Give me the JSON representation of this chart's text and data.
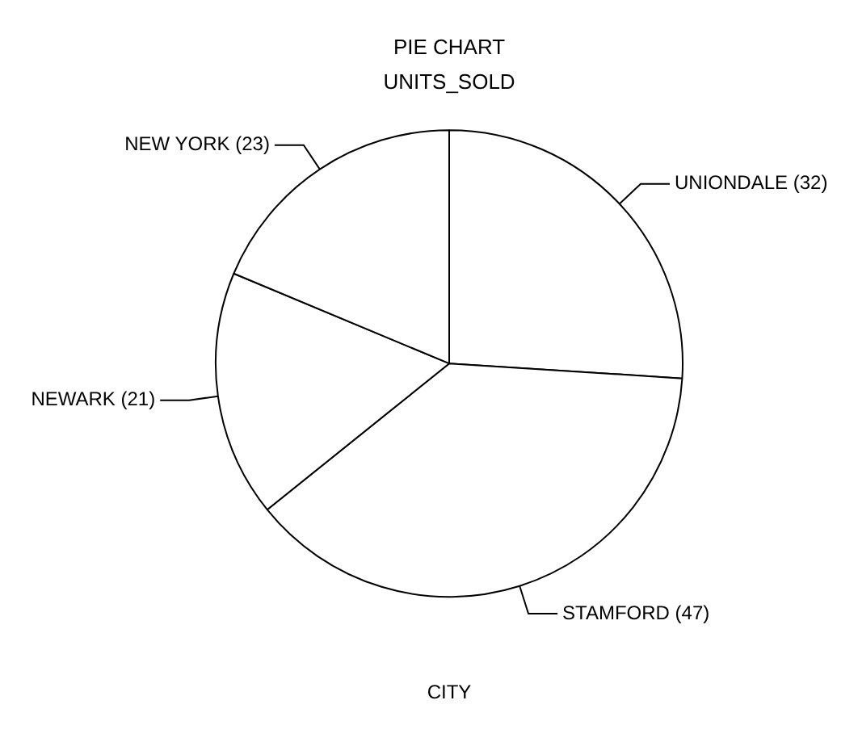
{
  "chart_data": {
    "type": "pie",
    "title": "PIE CHART",
    "subtitle": "UNITS_SOLD",
    "xlabel": "CITY",
    "categories": [
      "UNIONDALE",
      "STAMFORD",
      "NEWARK",
      "NEW YORK"
    ],
    "values": [
      32,
      47,
      21,
      23
    ],
    "colors": [
      "#ffffff",
      "#ffffff",
      "#ffffff",
      "#ffffff"
    ],
    "value_labels": [
      "(32)",
      "(47)",
      "(21)",
      "(23)"
    ],
    "legend": false
  }
}
